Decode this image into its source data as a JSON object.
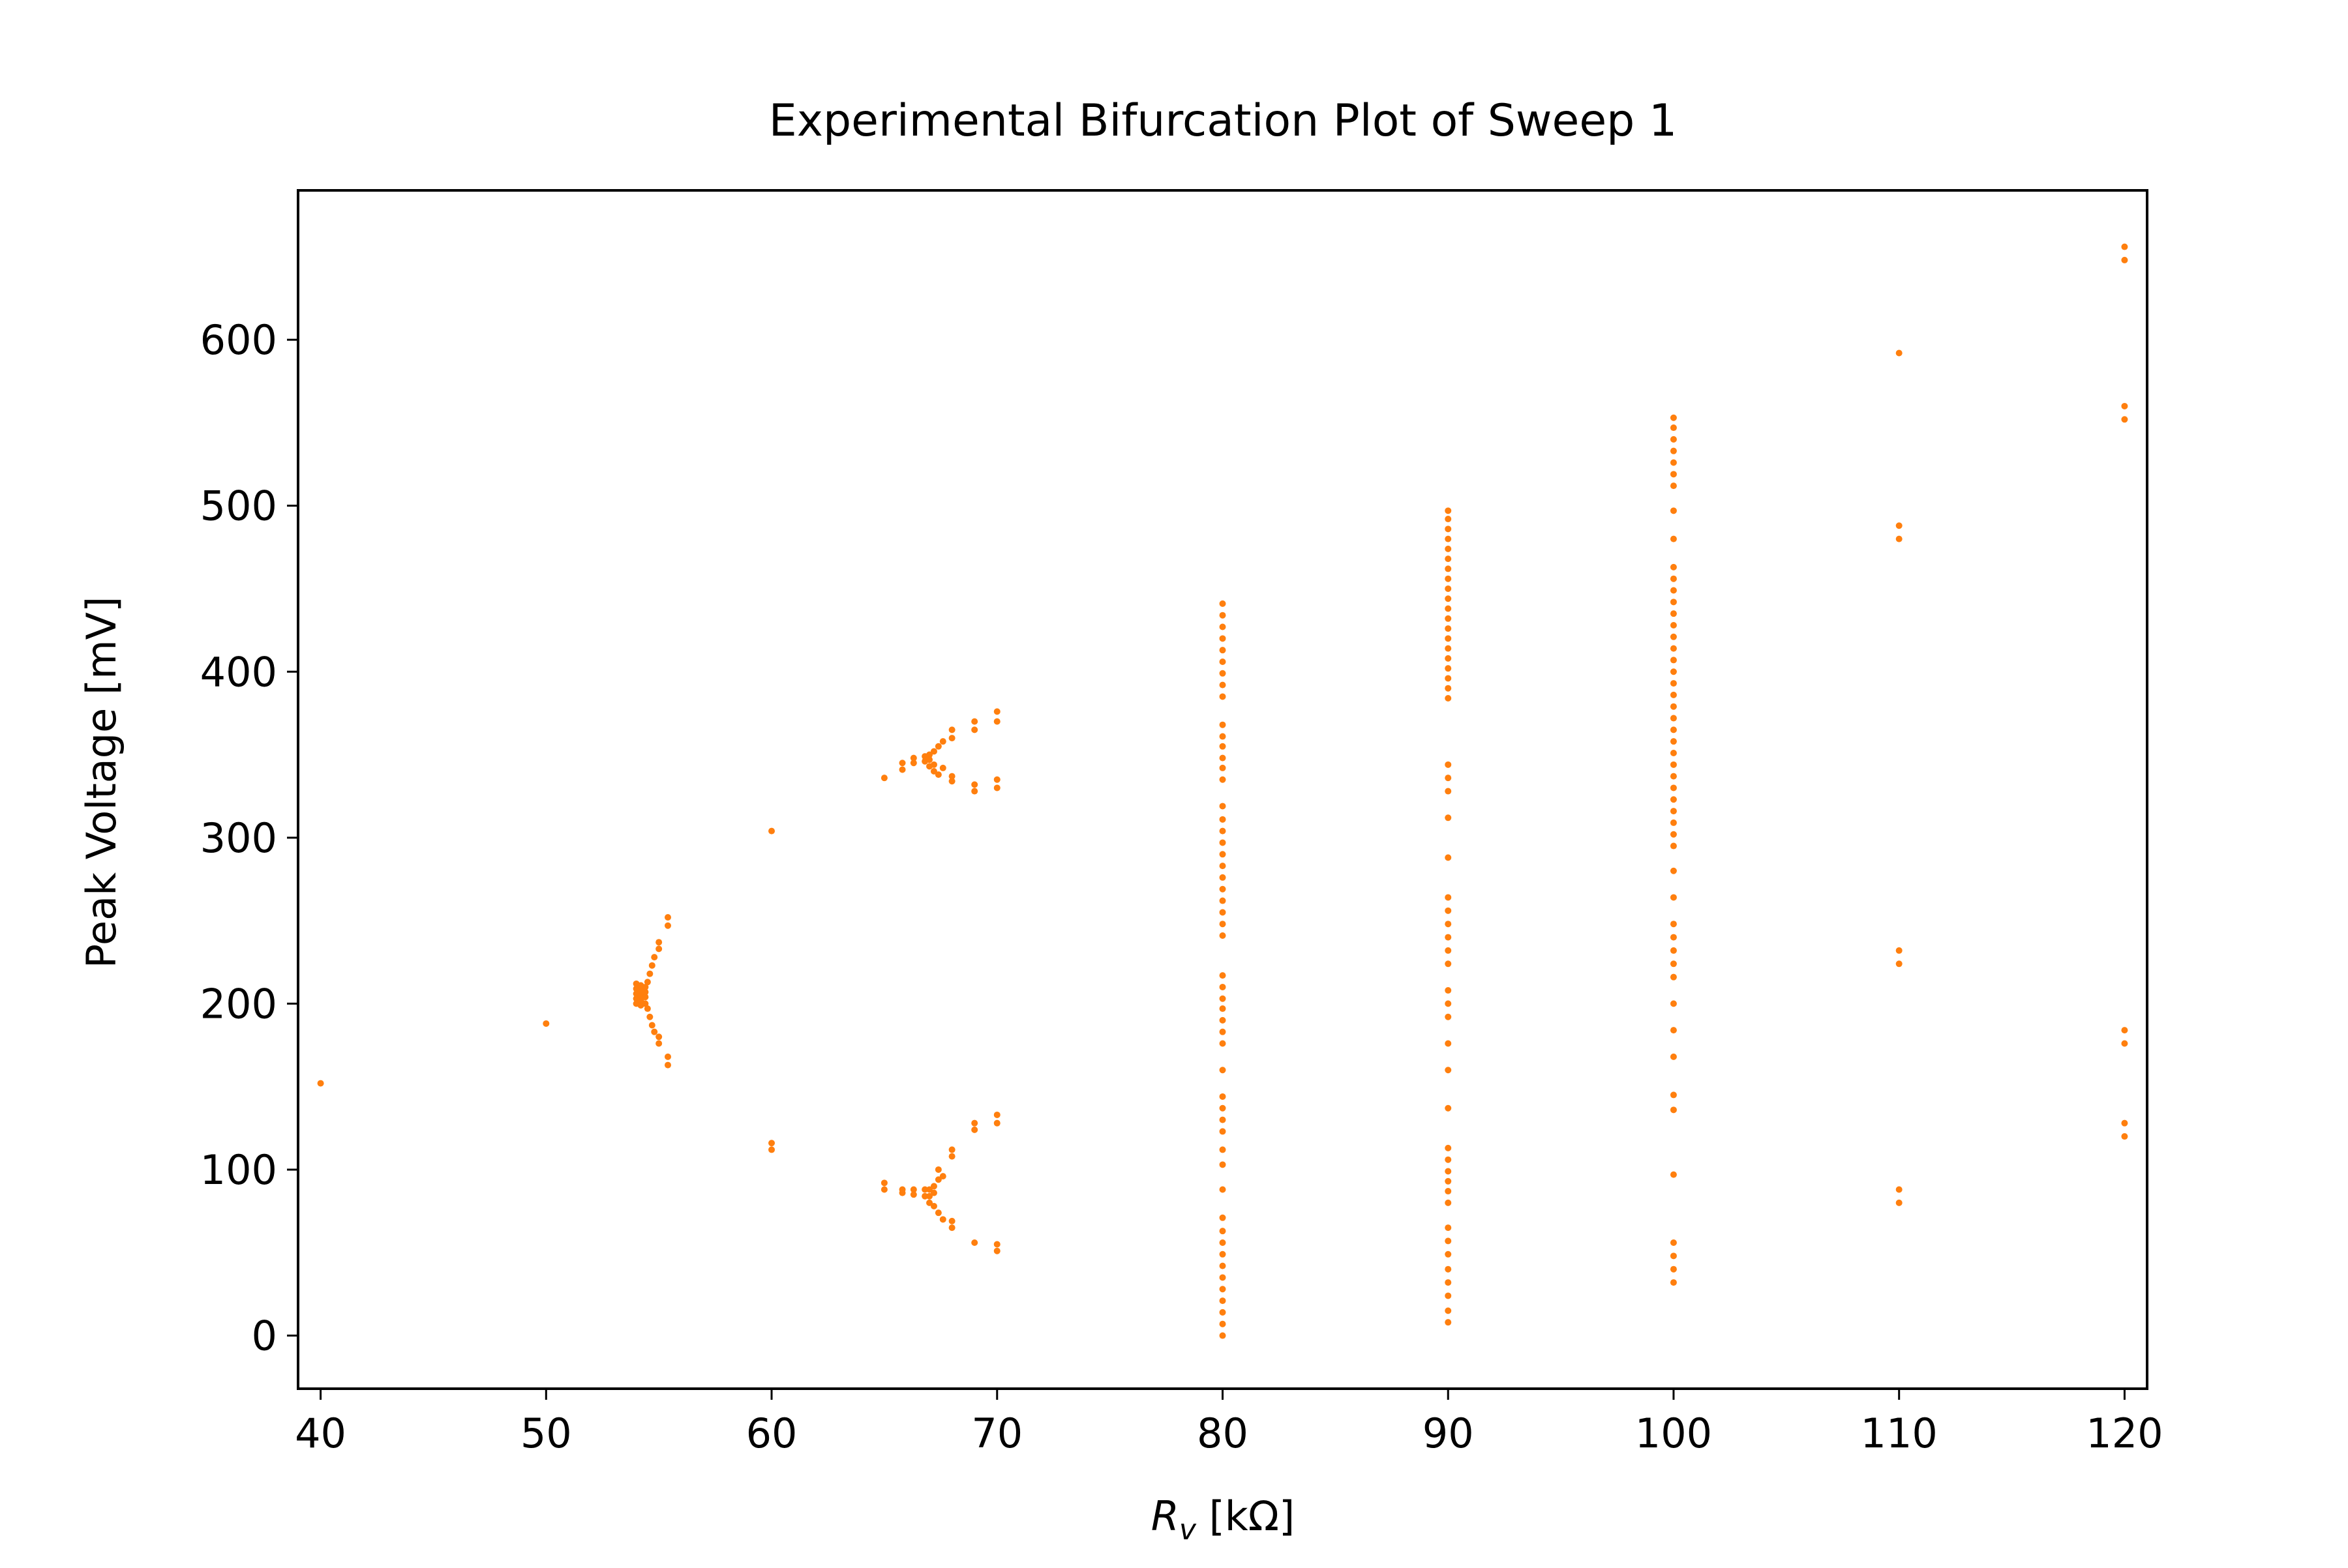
{
  "chart_data": {
    "type": "scatter",
    "title": "Experimental Bifurcation Plot of Sweep 1",
    "xlabel_symbol": "R",
    "xlabel_subscript": "v",
    "xlabel_unit": " [kΩ]",
    "ylabel": "Peak Voltage [mV]",
    "xlim": [
      39,
      121
    ],
    "ylim": [
      -32,
      690
    ],
    "xticks": [
      40,
      50,
      60,
      70,
      80,
      90,
      100,
      110,
      120
    ],
    "yticks": [
      0,
      100,
      200,
      300,
      400,
      500,
      600
    ],
    "grid": false,
    "color": "#ff7f0e",
    "series": [
      {
        "points": [
          [
            40,
            152
          ],
          [
            50,
            188
          ],
          [
            54,
            200
          ],
          [
            54,
            203
          ],
          [
            54,
            206
          ],
          [
            54,
            209
          ],
          [
            54,
            212
          ],
          [
            54.2,
            199
          ],
          [
            54.2,
            202
          ],
          [
            54.2,
            205
          ],
          [
            54.2,
            208
          ],
          [
            54.2,
            211
          ],
          [
            54.4,
            200
          ],
          [
            54.4,
            204
          ],
          [
            54.4,
            207
          ],
          [
            54.4,
            210
          ],
          [
            54.5,
            213
          ],
          [
            54.5,
            197
          ],
          [
            54.6,
            218
          ],
          [
            54.6,
            192
          ],
          [
            54.7,
            223
          ],
          [
            54.7,
            187
          ],
          [
            54.8,
            228
          ],
          [
            54.8,
            183
          ],
          [
            55,
            233
          ],
          [
            55,
            176
          ],
          [
            55,
            237
          ],
          [
            55,
            180
          ],
          [
            55.4,
            247
          ],
          [
            55.4,
            252
          ],
          [
            55.4,
            163
          ],
          [
            55.4,
            168
          ],
          [
            60,
            304
          ],
          [
            60,
            116
          ],
          [
            60,
            112
          ],
          [
            65,
            336
          ],
          [
            65,
            92
          ],
          [
            65,
            88
          ],
          [
            65.8,
            341
          ],
          [
            65.8,
            345
          ],
          [
            65.8,
            86
          ],
          [
            65.8,
            88
          ],
          [
            66.3,
            345
          ],
          [
            66.3,
            348
          ],
          [
            66.3,
            85
          ],
          [
            66.3,
            88
          ],
          [
            66.8,
            346
          ],
          [
            66.8,
            349
          ],
          [
            66.8,
            84
          ],
          [
            66.8,
            88
          ],
          [
            67,
            343
          ],
          [
            67,
            347
          ],
          [
            67,
            350
          ],
          [
            67,
            80
          ],
          [
            67,
            84
          ],
          [
            67,
            88
          ],
          [
            67.2,
            340
          ],
          [
            67.2,
            344
          ],
          [
            67.2,
            352
          ],
          [
            67.2,
            78
          ],
          [
            67.2,
            86
          ],
          [
            67.2,
            90
          ],
          [
            67.4,
            338
          ],
          [
            67.4,
            355
          ],
          [
            67.4,
            74
          ],
          [
            67.4,
            94
          ],
          [
            67.4,
            100
          ],
          [
            67.6,
            342
          ],
          [
            67.6,
            358
          ],
          [
            67.6,
            70
          ],
          [
            67.6,
            96
          ],
          [
            68,
            334
          ],
          [
            68,
            337
          ],
          [
            68,
            360
          ],
          [
            68,
            365
          ],
          [
            68,
            65
          ],
          [
            68,
            69
          ],
          [
            68,
            108
          ],
          [
            68,
            112
          ],
          [
            69,
            328
          ],
          [
            69,
            332
          ],
          [
            69,
            365
          ],
          [
            69,
            370
          ],
          [
            69,
            56
          ],
          [
            69,
            124
          ],
          [
            69,
            128
          ],
          [
            70,
            330
          ],
          [
            70,
            335
          ],
          [
            70,
            370
          ],
          [
            70,
            376
          ],
          [
            70,
            51
          ],
          [
            70,
            55
          ],
          [
            70,
            128
          ],
          [
            70,
            133
          ],
          [
            80,
            0
          ],
          [
            80,
            7
          ],
          [
            80,
            14
          ],
          [
            80,
            21
          ],
          [
            80,
            28
          ],
          [
            80,
            35
          ],
          [
            80,
            42
          ],
          [
            80,
            49
          ],
          [
            80,
            56
          ],
          [
            80,
            63
          ],
          [
            80,
            71
          ],
          [
            80,
            88
          ],
          [
            80,
            103
          ],
          [
            80,
            112
          ],
          [
            80,
            123
          ],
          [
            80,
            130
          ],
          [
            80,
            137
          ],
          [
            80,
            144
          ],
          [
            80,
            160
          ],
          [
            80,
            176
          ],
          [
            80,
            183
          ],
          [
            80,
            190
          ],
          [
            80,
            197
          ],
          [
            80,
            203
          ],
          [
            80,
            210
          ],
          [
            80,
            217
          ],
          [
            80,
            241
          ],
          [
            80,
            248
          ],
          [
            80,
            255
          ],
          [
            80,
            262
          ],
          [
            80,
            269
          ],
          [
            80,
            276
          ],
          [
            80,
            283
          ],
          [
            80,
            290
          ],
          [
            80,
            297
          ],
          [
            80,
            304
          ],
          [
            80,
            311
          ],
          [
            80,
            319
          ],
          [
            80,
            335
          ],
          [
            80,
            342
          ],
          [
            80,
            348
          ],
          [
            80,
            355
          ],
          [
            80,
            361
          ],
          [
            80,
            368
          ],
          [
            80,
            385
          ],
          [
            80,
            392
          ],
          [
            80,
            399
          ],
          [
            80,
            406
          ],
          [
            80,
            413
          ],
          [
            80,
            420
          ],
          [
            80,
            427
          ],
          [
            80,
            434
          ],
          [
            80,
            441
          ],
          [
            90,
            8
          ],
          [
            90,
            15
          ],
          [
            90,
            24
          ],
          [
            90,
            32
          ],
          [
            90,
            40
          ],
          [
            90,
            49
          ],
          [
            90,
            57
          ],
          [
            90,
            65
          ],
          [
            90,
            80
          ],
          [
            90,
            87
          ],
          [
            90,
            93
          ],
          [
            90,
            99
          ],
          [
            90,
            106
          ],
          [
            90,
            113
          ],
          [
            90,
            137
          ],
          [
            90,
            160
          ],
          [
            90,
            176
          ],
          [
            90,
            192
          ],
          [
            90,
            200
          ],
          [
            90,
            208
          ],
          [
            90,
            224
          ],
          [
            90,
            232
          ],
          [
            90,
            240
          ],
          [
            90,
            248
          ],
          [
            90,
            256
          ],
          [
            90,
            264
          ],
          [
            90,
            288
          ],
          [
            90,
            312
          ],
          [
            90,
            328
          ],
          [
            90,
            336
          ],
          [
            90,
            344
          ],
          [
            90,
            384
          ],
          [
            90,
            390
          ],
          [
            90,
            396
          ],
          [
            90,
            402
          ],
          [
            90,
            408
          ],
          [
            90,
            414
          ],
          [
            90,
            420
          ],
          [
            90,
            426
          ],
          [
            90,
            432
          ],
          [
            90,
            438
          ],
          [
            90,
            444
          ],
          [
            90,
            450
          ],
          [
            90,
            456
          ],
          [
            90,
            462
          ],
          [
            90,
            468
          ],
          [
            90,
            474
          ],
          [
            90,
            480
          ],
          [
            90,
            486
          ],
          [
            90,
            492
          ],
          [
            90,
            497
          ],
          [
            100,
            32
          ],
          [
            100,
            40
          ],
          [
            100,
            48
          ],
          [
            100,
            56
          ],
          [
            100,
            97
          ],
          [
            100,
            136
          ],
          [
            100,
            145
          ],
          [
            100,
            168
          ],
          [
            100,
            184
          ],
          [
            100,
            200
          ],
          [
            100,
            216
          ],
          [
            100,
            224
          ],
          [
            100,
            232
          ],
          [
            100,
            240
          ],
          [
            100,
            248
          ],
          [
            100,
            264
          ],
          [
            100,
            280
          ],
          [
            100,
            295
          ],
          [
            100,
            302
          ],
          [
            100,
            309
          ],
          [
            100,
            316
          ],
          [
            100,
            323
          ],
          [
            100,
            330
          ],
          [
            100,
            337
          ],
          [
            100,
            344
          ],
          [
            100,
            351
          ],
          [
            100,
            358
          ],
          [
            100,
            365
          ],
          [
            100,
            372
          ],
          [
            100,
            379
          ],
          [
            100,
            386
          ],
          [
            100,
            393
          ],
          [
            100,
            400
          ],
          [
            100,
            407
          ],
          [
            100,
            414
          ],
          [
            100,
            421
          ],
          [
            100,
            428
          ],
          [
            100,
            435
          ],
          [
            100,
            442
          ],
          [
            100,
            449
          ],
          [
            100,
            456
          ],
          [
            100,
            463
          ],
          [
            100,
            480
          ],
          [
            100,
            497
          ],
          [
            100,
            512
          ],
          [
            100,
            519
          ],
          [
            100,
            526
          ],
          [
            100,
            533
          ],
          [
            100,
            540
          ],
          [
            100,
            547
          ],
          [
            100,
            553
          ],
          [
            110,
            80
          ],
          [
            110,
            88
          ],
          [
            110,
            224
          ],
          [
            110,
            232
          ],
          [
            110,
            480
          ],
          [
            110,
            488
          ],
          [
            110,
            592
          ],
          [
            120,
            120
          ],
          [
            120,
            128
          ],
          [
            120,
            176
          ],
          [
            120,
            184
          ],
          [
            120,
            552
          ],
          [
            120,
            560
          ],
          [
            120,
            648
          ],
          [
            120,
            656
          ]
        ]
      }
    ]
  }
}
